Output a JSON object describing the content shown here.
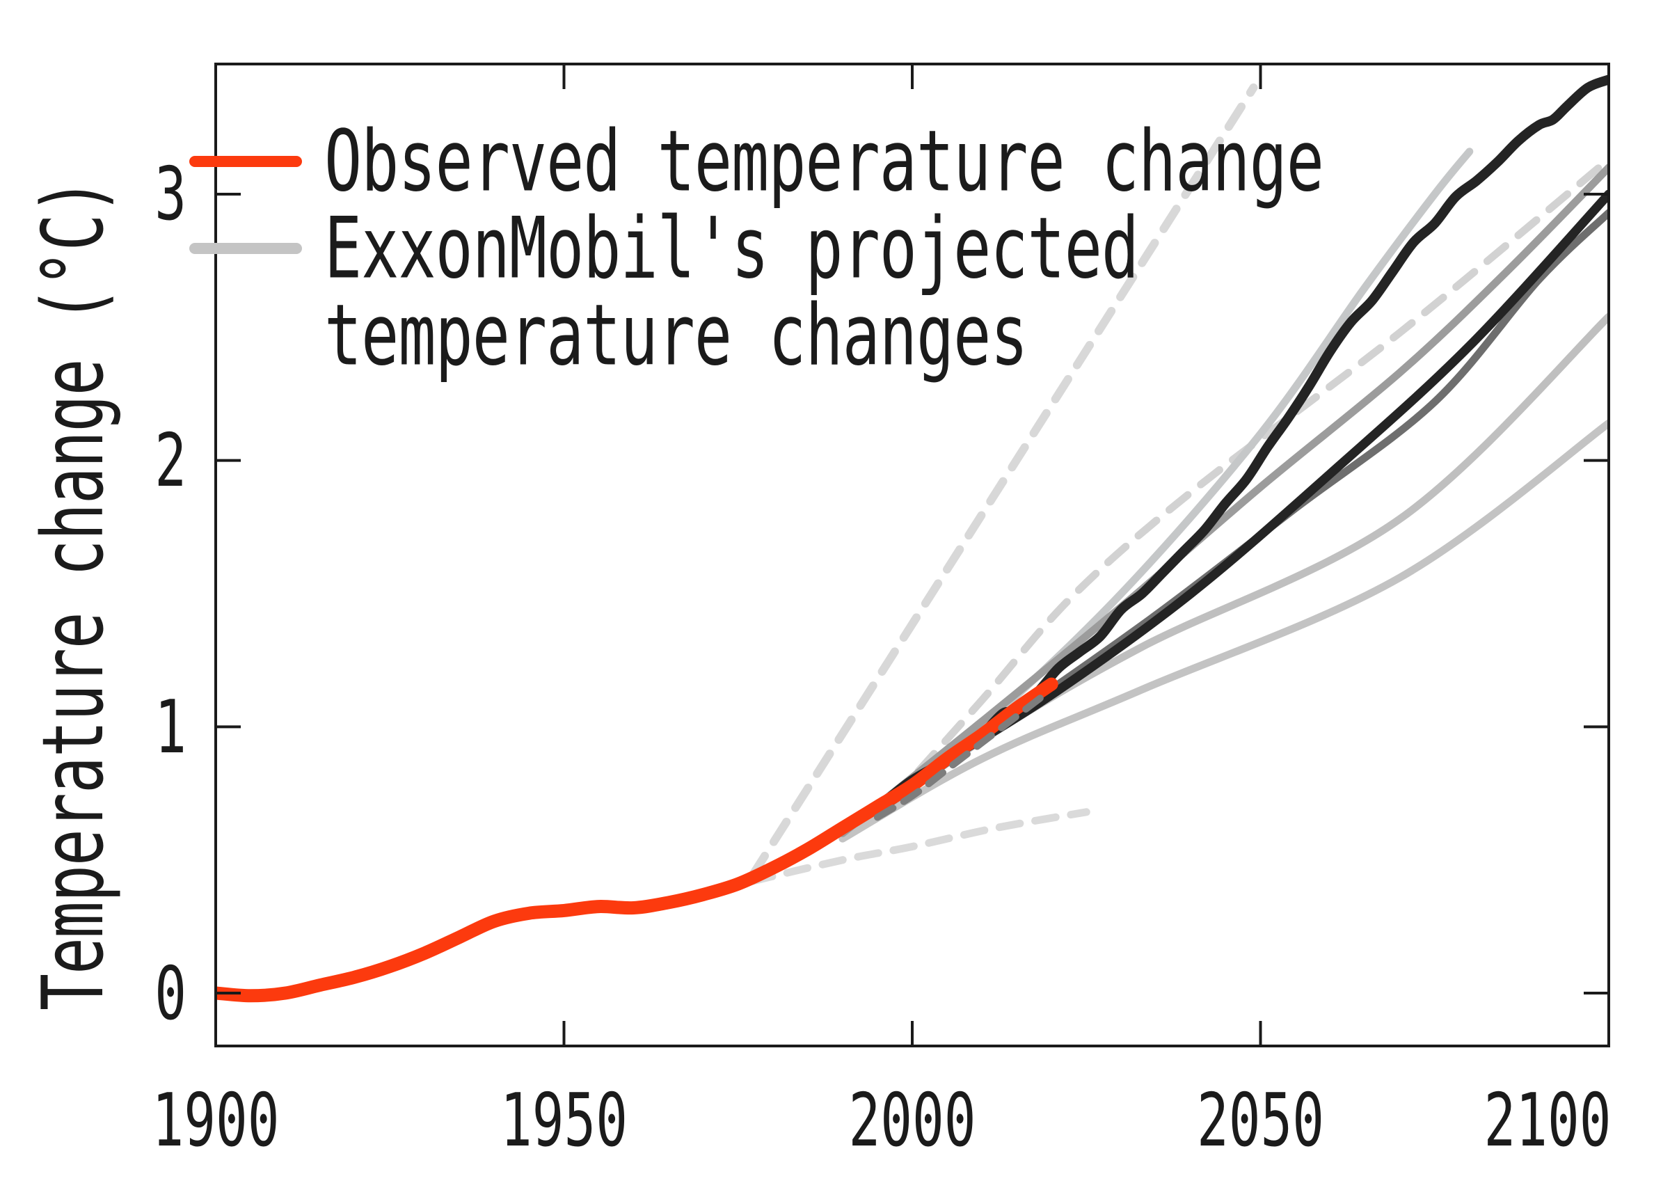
{
  "figure": {
    "background": "#ffffff",
    "text_color": "#1b1b1b",
    "spine_color": "#1a1a1a"
  },
  "legend": {
    "position": "upper left",
    "items": [
      {
        "label": "Observed temperature change",
        "color": "#fc3a0e",
        "style": "solid"
      },
      {
        "label": "ExxonMobil's projected",
        "label_line2": "temperature changes",
        "color": "#c4c4c4",
        "style": "solid"
      }
    ]
  },
  "axes": {
    "x": {
      "ticks": [
        {
          "value": 1900,
          "label": "1900"
        },
        {
          "value": 1950,
          "label": "1950"
        },
        {
          "value": 2000,
          "label": "2000"
        },
        {
          "value": 2050,
          "label": "2050"
        },
        {
          "value": 2100,
          "label": "2100"
        }
      ]
    },
    "y": {
      "label": "Temperature change (°C)",
      "ticks": [
        {
          "value": 0,
          "label": "0"
        },
        {
          "value": 1,
          "label": "1"
        },
        {
          "value": 2,
          "label": "2"
        },
        {
          "value": 3,
          "label": "3"
        }
      ]
    }
  },
  "chart_data": {
    "type": "line",
    "title": "",
    "xlabel": "",
    "ylabel": "Temperature change (°C)",
    "xlim": [
      1900,
      2100
    ],
    "ylim": [
      -0.2,
      3.5
    ],
    "grid": false,
    "legend_position": "upper left",
    "tick_direction": "in",
    "series": [
      {
        "name": "exxon-projection-dashed-short-light",
        "color": "#dadada",
        "width": 11,
        "dash": "30 22",
        "smooth": true,
        "points": [
          [
            1977,
            0.42
          ],
          [
            1990,
            0.5
          ],
          [
            2000,
            0.55
          ],
          [
            2012,
            0.62
          ],
          [
            2025,
            0.68
          ]
        ]
      },
      {
        "name": "exxon-projection-dashed-steep",
        "color": "#d8d8d8",
        "width": 12,
        "dash": "34 24",
        "smooth": false,
        "points": [
          [
            1977,
            0.44
          ],
          [
            2049,
            3.4
          ]
        ]
      },
      {
        "name": "exxon-projection-dashed-long",
        "color": "#d2d2d2",
        "width": 11,
        "dash": "34 24",
        "smooth": true,
        "points": [
          [
            1997,
            0.72
          ],
          [
            2010,
            1.1
          ],
          [
            2023,
            1.49
          ],
          [
            2040,
            1.88
          ],
          [
            2070,
            2.48
          ],
          [
            2100,
            3.13
          ]
        ]
      },
      {
        "name": "exxon-projection-light-high",
        "color": "#c5c7c8",
        "width": 11,
        "dash": null,
        "smooth": true,
        "points": [
          [
            1993,
            0.64
          ],
          [
            2010,
            1.0
          ],
          [
            2030,
            1.5
          ],
          [
            2050,
            2.1
          ],
          [
            2065,
            2.65
          ],
          [
            2075,
            3.0
          ],
          [
            2080,
            3.16
          ]
        ]
      },
      {
        "name": "exxon-projection-light-mid",
        "color": "#bfbfbf",
        "width": 11,
        "dash": null,
        "smooth": true,
        "points": [
          [
            1992,
            0.62
          ],
          [
            2010,
            0.95
          ],
          [
            2033,
            1.3
          ],
          [
            2070,
            1.78
          ],
          [
            2100,
            2.54
          ]
        ]
      },
      {
        "name": "exxon-projection-light-low",
        "color": "#c3c3c3",
        "width": 11,
        "dash": null,
        "smooth": true,
        "points": [
          [
            1990,
            0.58
          ],
          [
            2010,
            0.88
          ],
          [
            2033,
            1.14
          ],
          [
            2070,
            1.56
          ],
          [
            2100,
            2.14
          ]
        ]
      },
      {
        "name": "exxon-projection-gray-medium",
        "color": "#9c9c9c",
        "width": 11,
        "dash": null,
        "smooth": true,
        "points": [
          [
            1990,
            0.6
          ],
          [
            2010,
            1.02
          ],
          [
            2030,
            1.45
          ],
          [
            2050,
            1.9
          ],
          [
            2070,
            2.33
          ],
          [
            2085,
            2.7
          ],
          [
            2100,
            3.1
          ]
        ]
      },
      {
        "name": "exxon-projection-gray-dark",
        "color": "#6e6e6e",
        "width": 11,
        "dash": null,
        "smooth": true,
        "points": [
          [
            1995,
            0.68
          ],
          [
            2015,
            1.05
          ],
          [
            2035,
            1.42
          ],
          [
            2055,
            1.82
          ],
          [
            2075,
            2.22
          ],
          [
            2090,
            2.68
          ],
          [
            2100,
            2.93
          ]
        ]
      },
      {
        "name": "exxon-projection-black-jagged",
        "color": "#242424",
        "width": 14,
        "dash": null,
        "smooth": true,
        "points": [
          [
            1997,
            0.74
          ],
          [
            2000,
            0.8
          ],
          [
            2004,
            0.86
          ],
          [
            2007,
            0.91
          ],
          [
            2010,
            0.97
          ],
          [
            2013,
            1.05
          ],
          [
            2015,
            1.06
          ],
          [
            2018,
            1.13
          ],
          [
            2021,
            1.22
          ],
          [
            2024,
            1.28
          ],
          [
            2027,
            1.34
          ],
          [
            2030,
            1.44
          ],
          [
            2033,
            1.5
          ],
          [
            2036,
            1.58
          ],
          [
            2039,
            1.66
          ],
          [
            2042,
            1.74
          ],
          [
            2045,
            1.84
          ],
          [
            2048,
            1.93
          ],
          [
            2051,
            2.05
          ],
          [
            2054,
            2.16
          ],
          [
            2057,
            2.28
          ],
          [
            2060,
            2.41
          ],
          [
            2063,
            2.52
          ],
          [
            2066,
            2.6
          ],
          [
            2069,
            2.71
          ],
          [
            2072,
            2.82
          ],
          [
            2075,
            2.89
          ],
          [
            2078,
            2.99
          ],
          [
            2081,
            3.05
          ],
          [
            2084,
            3.12
          ],
          [
            2087,
            3.2
          ],
          [
            2090,
            3.26
          ],
          [
            2092,
            3.28
          ],
          [
            2094,
            3.33
          ],
          [
            2097,
            3.4
          ],
          [
            2100,
            3.43
          ]
        ]
      },
      {
        "name": "exxon-projection-black-straight",
        "color": "#242424",
        "width": 13,
        "dash": null,
        "smooth": true,
        "points": [
          [
            2004,
            0.86
          ],
          [
            2020,
            1.12
          ],
          [
            2040,
            1.5
          ],
          [
            2060,
            1.95
          ],
          [
            2080,
            2.43
          ],
          [
            2100,
            3.0
          ]
        ]
      },
      {
        "name": "observed-temperature",
        "color": "#fc3a0e",
        "width": 19,
        "dash": null,
        "smooth": true,
        "points": [
          [
            1900,
            0.0
          ],
          [
            1905,
            -0.01
          ],
          [
            1910,
            0.0
          ],
          [
            1915,
            0.03
          ],
          [
            1920,
            0.06
          ],
          [
            1925,
            0.1
          ],
          [
            1930,
            0.15
          ],
          [
            1935,
            0.21
          ],
          [
            1940,
            0.27
          ],
          [
            1945,
            0.3
          ],
          [
            1950,
            0.31
          ],
          [
            1955,
            0.325
          ],
          [
            1960,
            0.32
          ],
          [
            1965,
            0.34
          ],
          [
            1970,
            0.37
          ],
          [
            1975,
            0.41
          ],
          [
            1980,
            0.47
          ],
          [
            1985,
            0.54
          ],
          [
            1990,
            0.62
          ],
          [
            1995,
            0.7
          ],
          [
            2000,
            0.78
          ],
          [
            2005,
            0.88
          ],
          [
            2010,
            0.97
          ],
          [
            2015,
            1.07
          ],
          [
            2020,
            1.16
          ]
        ]
      },
      {
        "name": "exxon-projection-dashed-short-dark",
        "color": "#7d7d7d",
        "width": 10,
        "dash": "26 18",
        "smooth": true,
        "points": [
          [
            1995,
            0.66
          ],
          [
            2000,
            0.74
          ],
          [
            2005,
            0.84
          ],
          [
            2010,
            0.94
          ],
          [
            2015,
            1.04
          ],
          [
            2019,
            1.12
          ]
        ]
      }
    ]
  }
}
